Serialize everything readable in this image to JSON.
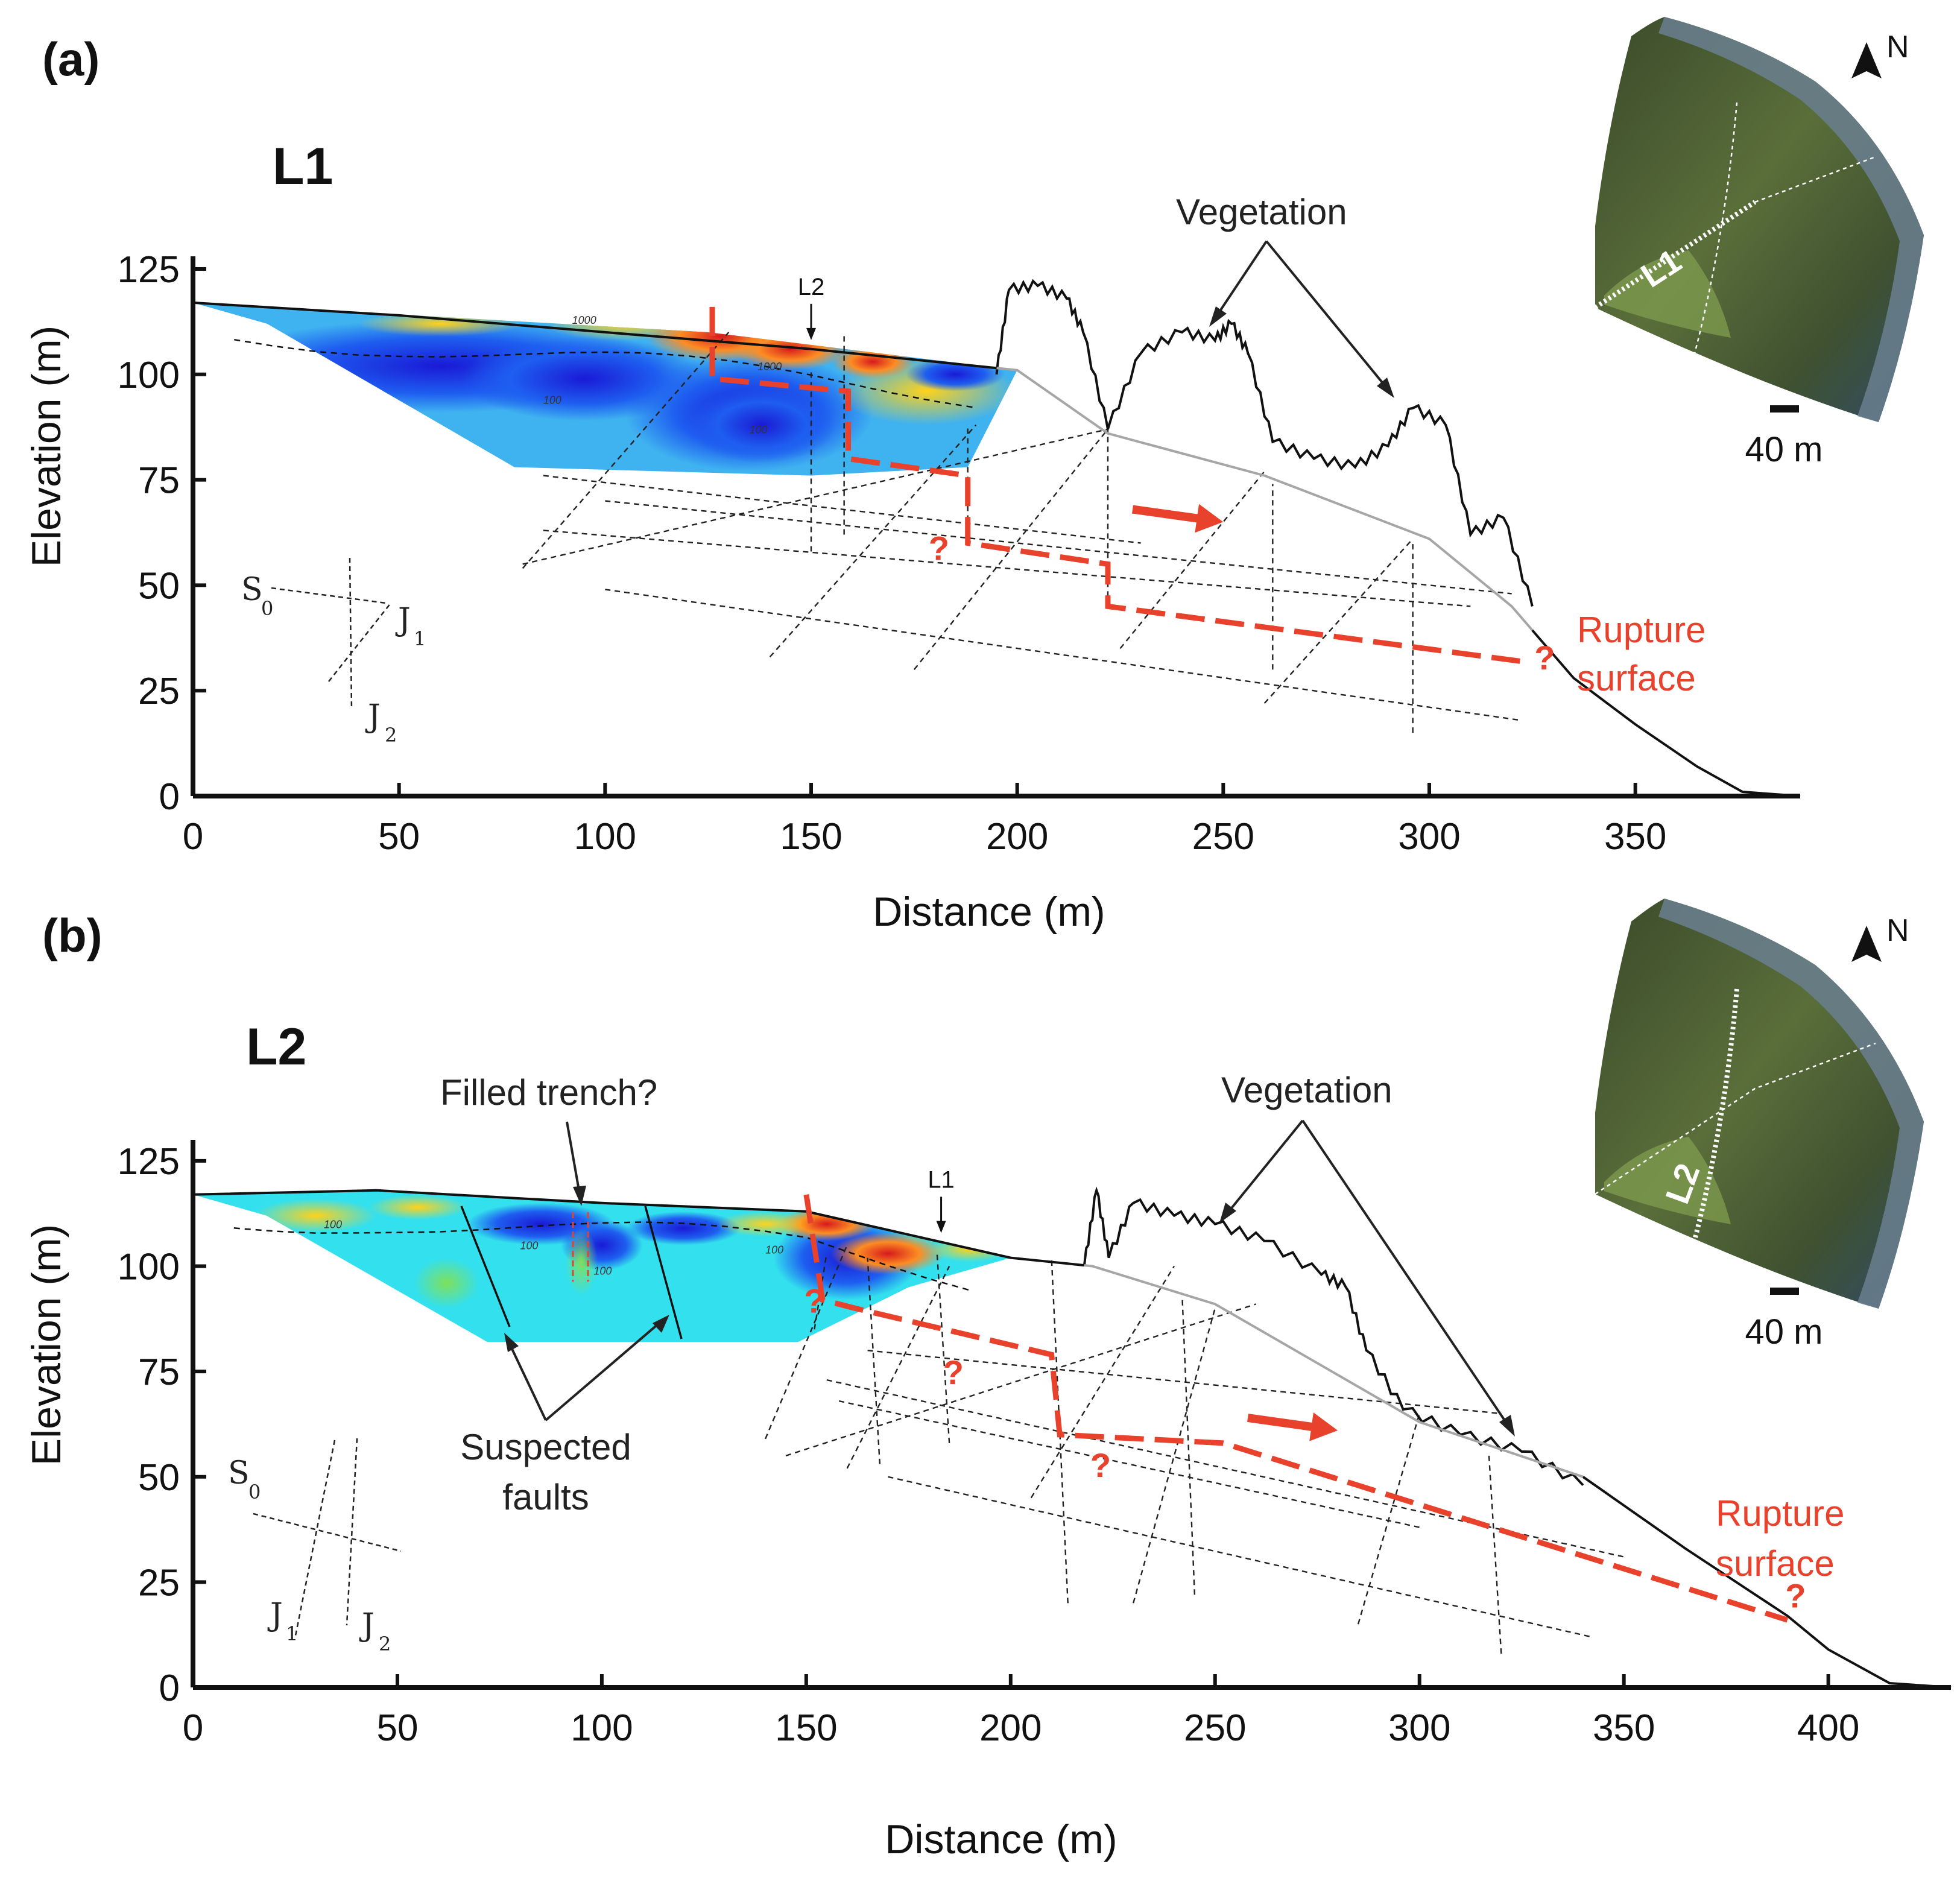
{
  "figure": {
    "panels": [
      {
        "panel_label": "(a)",
        "profile_name": "L1",
        "crossing_marker": "L2",
        "vegetation_label": "Vegetation",
        "rupture_label_line1": "Rupture",
        "rupture_label_line2": "surface",
        "question_mark": "?",
        "legend": {
          "s0": "S",
          "s0_sub": "0",
          "j1": "J",
          "j1_sub": "1",
          "j2": "J",
          "j2_sub": "2"
        },
        "contour_labels": [
          "1000",
          "1000",
          "100",
          "100"
        ],
        "inset": {
          "north": "N",
          "line_label": "L1",
          "scale": "40 m"
        }
      },
      {
        "panel_label": "(b)",
        "profile_name": "L2",
        "crossing_marker": "L1",
        "vegetation_label": "Vegetation",
        "filled_trench_label": "Filled trench?",
        "suspected_faults_line1": "Suspected",
        "suspected_faults_line2": "faults",
        "rupture_label_line1": "Rupture",
        "rupture_label_line2": "surface",
        "question_mark": "?",
        "legend": {
          "s0": "S",
          "s0_sub": "0",
          "j1": "J",
          "j1_sub": "1",
          "j2": "J",
          "j2_sub": "2"
        },
        "contour_labels": [
          "100",
          "100",
          "100",
          "100"
        ],
        "inset": {
          "north": "N",
          "line_label": "L2",
          "scale": "40 m"
        }
      }
    ]
  },
  "chart_data": [
    {
      "type": "line",
      "title": "L1",
      "xlabel": "Distance (m)",
      "ylabel": "Elevation (m)",
      "xlim": [
        0,
        390
      ],
      "ylim": [
        0,
        128
      ],
      "xticks": [
        0,
        50,
        100,
        150,
        200,
        250,
        300,
        350
      ],
      "yticks": [
        0,
        25,
        50,
        75,
        100,
        125
      ],
      "ground_profile": {
        "x": [
          0,
          50,
          100,
          150,
          200,
          222,
          260,
          300,
          320,
          335,
          350,
          365,
          376,
          390
        ],
        "y": [
          117,
          114,
          110,
          106,
          101,
          86,
          76,
          61,
          45,
          28,
          17,
          7,
          1,
          0
        ]
      },
      "vegetation_canopy": {
        "x": [
          195,
          198,
          205,
          212,
          216,
          222,
          230,
          240,
          248,
          252,
          256,
          262,
          272,
          282,
          290,
          296,
          304,
          310,
          318,
          325
        ],
        "y": [
          100,
          120,
          121,
          118,
          110,
          87,
          105,
          110,
          108,
          112,
          105,
          84,
          80,
          78,
          83,
          92,
          88,
          62,
          66,
          45
        ]
      },
      "ert_section": {
        "x": [
          0,
          125,
          200,
          188,
          150,
          78,
          18
        ],
        "y": [
          117,
          110,
          101,
          78,
          76,
          78,
          112
        ]
      },
      "rupture_surface": {
        "x": [
          126,
          126,
          159,
          159,
          188,
          188,
          222,
          222,
          322
        ],
        "y": [
          116,
          99,
          96,
          80,
          76,
          60,
          55,
          45,
          32
        ]
      },
      "movement_arrow": {
        "x": [
          228,
          250
        ],
        "y": [
          68,
          65
        ]
      },
      "crossing_line_x": 150
    },
    {
      "type": "line",
      "title": "L2",
      "xlabel": "Distance (m)",
      "ylabel": "Elevation (m)",
      "xlim": [
        0,
        430
      ],
      "ylim": [
        0,
        130
      ],
      "xticks": [
        0,
        50,
        100,
        150,
        200,
        250,
        300,
        350,
        400
      ],
      "yticks": [
        0,
        25,
        50,
        75,
        100,
        125
      ],
      "ground_profile": {
        "x": [
          0,
          45,
          100,
          150,
          200,
          220,
          250,
          300,
          340,
          365,
          390,
          400,
          415,
          430
        ],
        "y": [
          117,
          118,
          115,
          113,
          102,
          100,
          91,
          63,
          50,
          33,
          17,
          9,
          1,
          0
        ]
      },
      "vegetation_canopy": {
        "x": [
          218,
          221,
          224,
          230,
          240,
          250,
          262,
          276,
          282,
          287,
          296,
          310,
          325,
          340
        ],
        "y": [
          100,
          118,
          102,
          115,
          112,
          110,
          106,
          98,
          95,
          80,
          66,
          60,
          56,
          48
        ]
      },
      "ert_section": {
        "x": [
          0,
          45,
          100,
          150,
          200,
          175,
          148,
          72,
          18
        ],
        "y": [
          117,
          118,
          115,
          113,
          102,
          95,
          82,
          82,
          112
        ]
      },
      "rupture_surface": {
        "x": [
          150,
          154,
          162,
          210,
          212,
          252,
          390
        ],
        "y": [
          117,
          92,
          90,
          79,
          60,
          58,
          16
        ]
      },
      "movement_arrow": {
        "x": [
          258,
          280
        ],
        "y": [
          64,
          61
        ]
      },
      "crossing_line_x": 183
    }
  ]
}
